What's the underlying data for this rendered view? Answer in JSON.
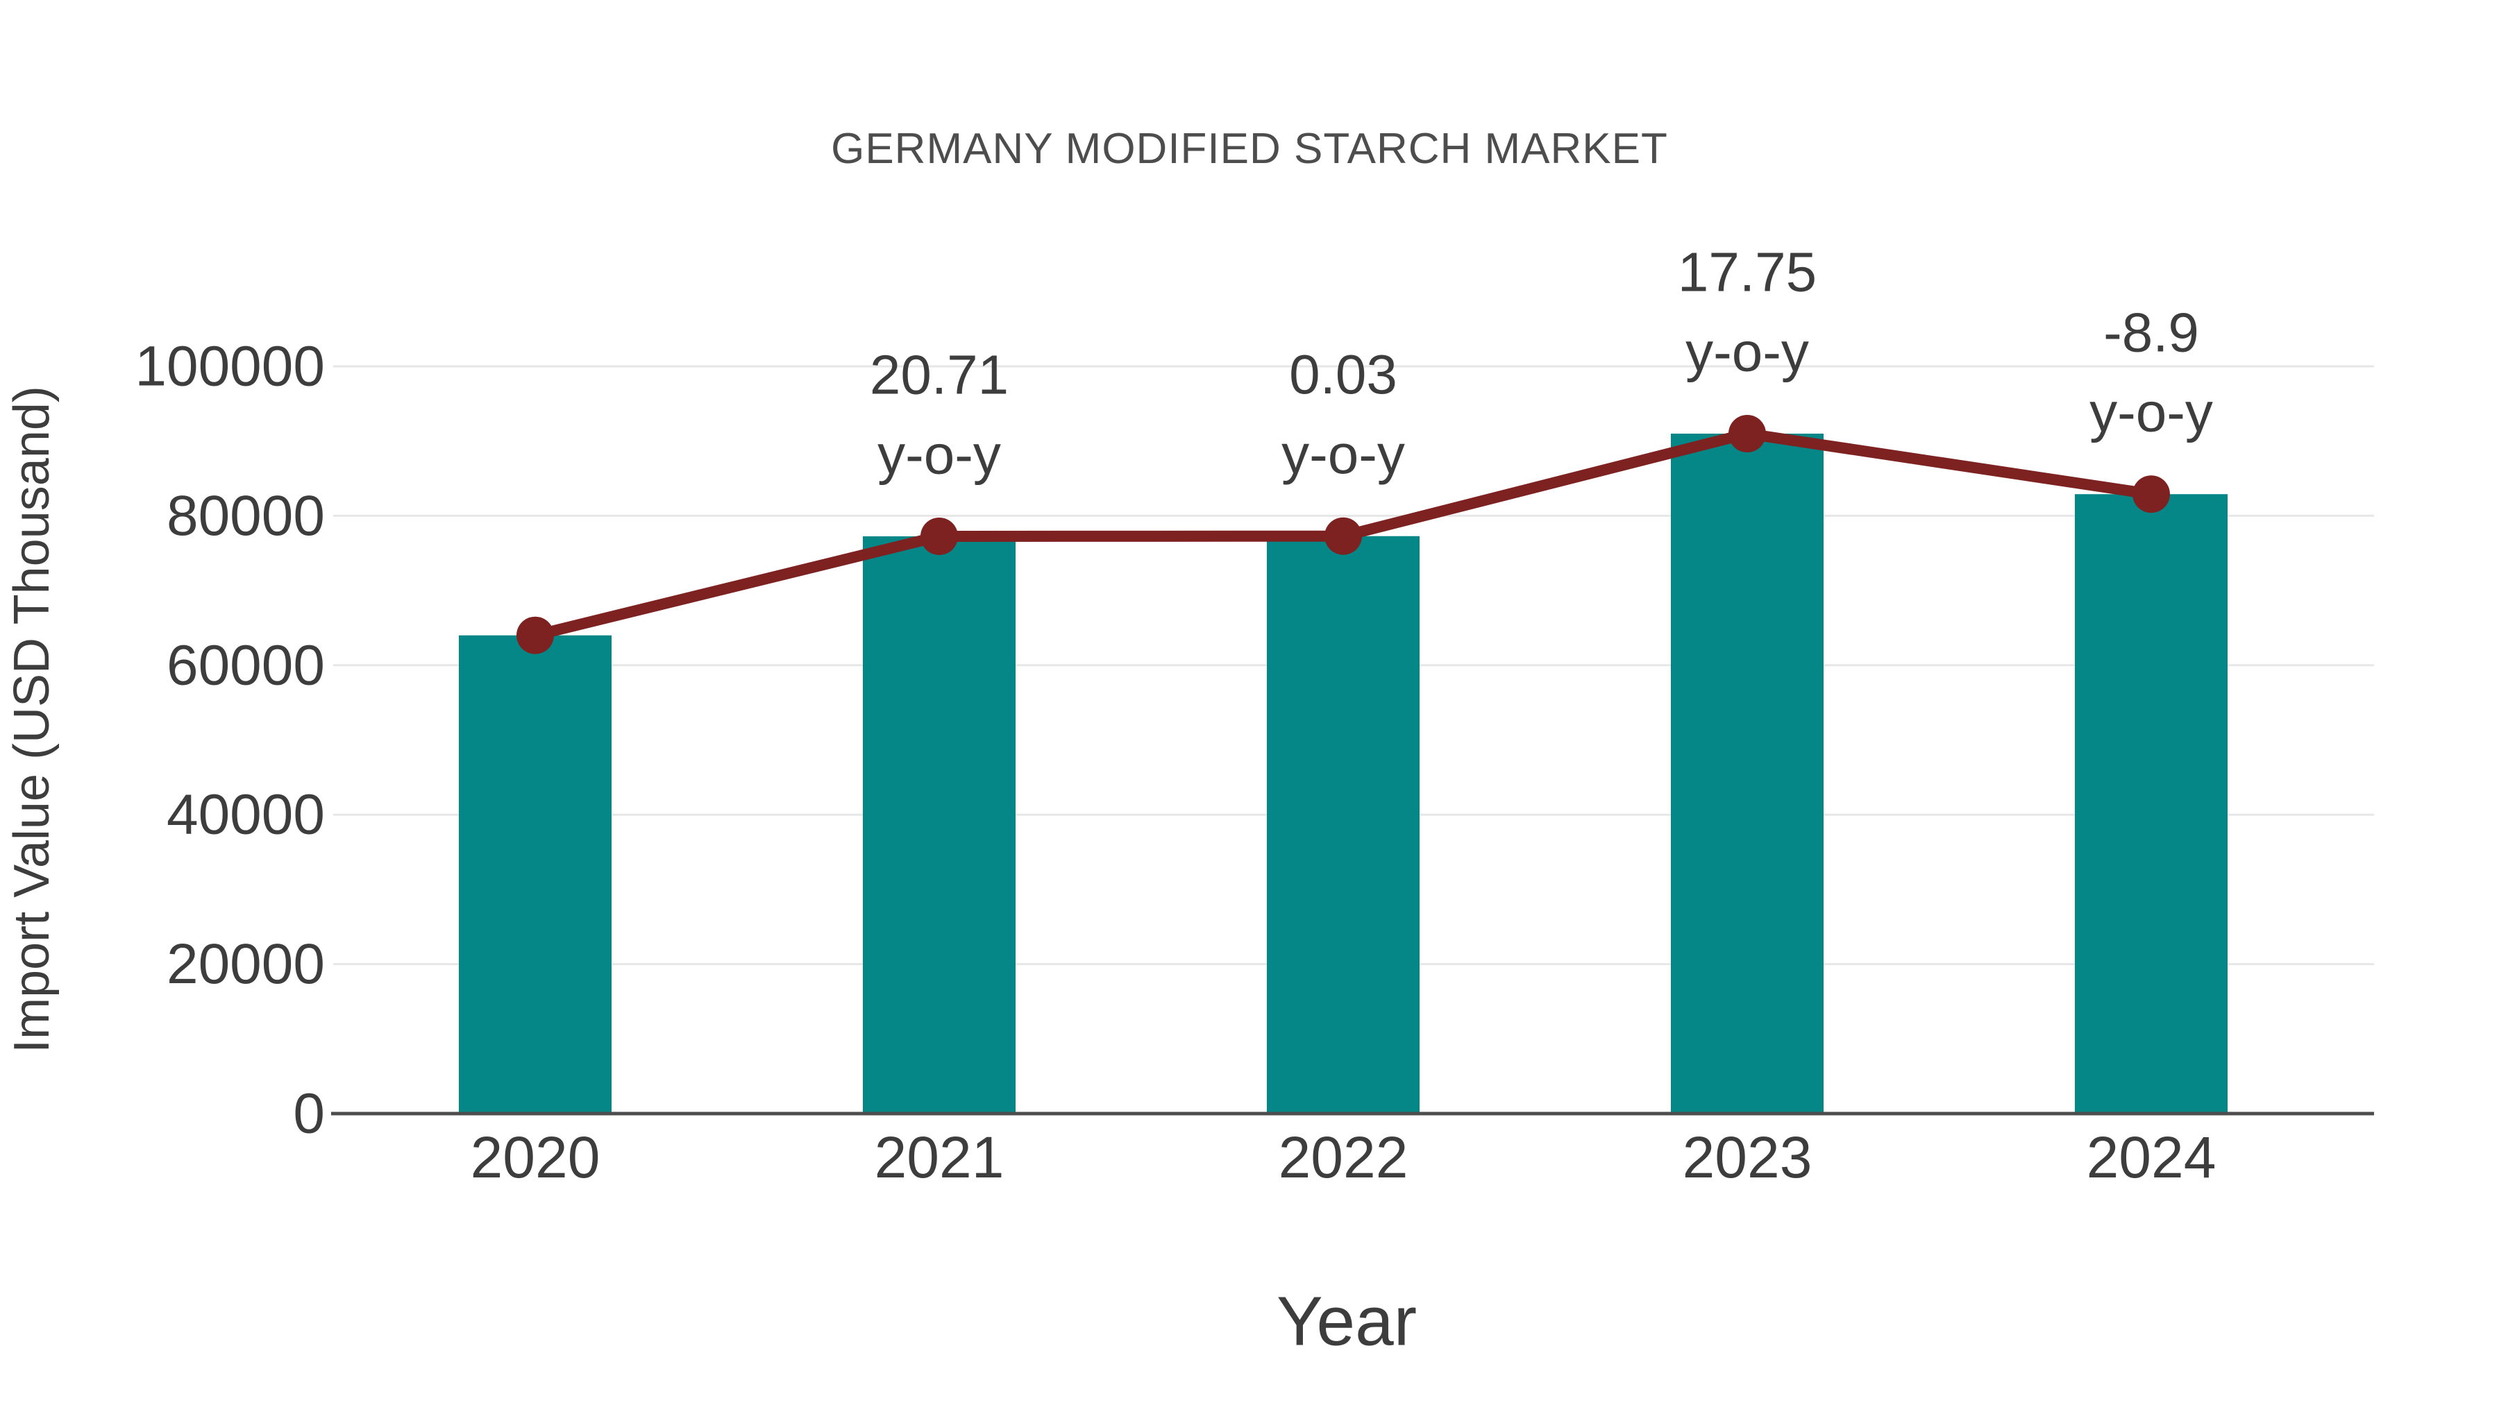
{
  "chart_data": {
    "type": "bar",
    "title": "GERMANY MODIFIED STARCH MARKET",
    "xlabel": "Year",
    "ylabel": "Import Value (USD Thousand)",
    "categories": [
      "2020",
      "2021",
      "2022",
      "2023",
      "2024"
    ],
    "series": [
      {
        "name": "Import Value (USD Thousand)",
        "type": "bar",
        "values": [
          64000,
          77254,
          77278,
          90994,
          82896
        ],
        "color": "#068787"
      },
      {
        "name": "Year-over-year trend line",
        "type": "line",
        "values": [
          64000,
          77254,
          77278,
          90994,
          82896
        ],
        "color": "#7e2121"
      }
    ],
    "annotations": [
      {
        "category": "2021",
        "line1": "20.71",
        "line2": "y-o-y"
      },
      {
        "category": "2022",
        "line1": "0.03",
        "line2": "y-o-y"
      },
      {
        "category": "2023",
        "line1": "17.75",
        "line2": "y-o-y"
      },
      {
        "category": "2024",
        "line1": "-8.9",
        "line2": "y-o-y"
      }
    ],
    "yticks": [
      0,
      20000,
      40000,
      60000,
      80000,
      100000
    ],
    "ylim": [
      0,
      107000
    ],
    "grid": true,
    "legend": "none",
    "style": {
      "bar_color": "#068787",
      "line_color": "#7e2121",
      "grid_color": "#e7e7e7",
      "axis_color": "#4d4d4d",
      "text_color": "#3d3d3d",
      "title_color": "#4d4d4d",
      "background": "#ffffff"
    }
  }
}
